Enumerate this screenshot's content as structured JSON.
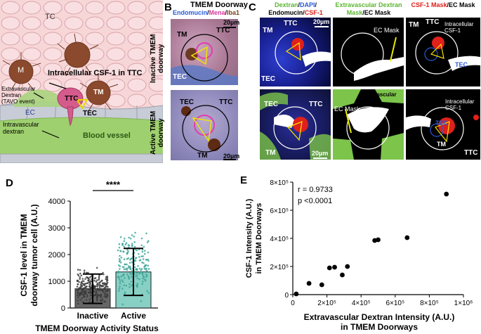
{
  "panelA": {
    "letter": "A",
    "labels": {
      "tc": "TC",
      "m": "M",
      "intracellular": "Intracellular CSF-1 in TTC",
      "extravascular_dextran": "Extravascular\nDextran\n(TAVO event)",
      "ec": "EC",
      "ttc": "TTC",
      "tm": "TM",
      "tec": "TEC",
      "intravascular": "Intravascular\ndextran",
      "blood_vessel": "Blood vessel"
    }
  },
  "panelB": {
    "letter": "B",
    "title": "TMEM Doorway",
    "stain": {
      "endomucin": "Endomucin",
      "sep1": "/",
      "mena": "Mena",
      "sep2": "/",
      "iba1": "Iba1"
    },
    "rows": [
      {
        "label": "Inactive TMEM\ndoorway",
        "tm": "TM",
        "ttc": "TTC",
        "tec": "TEC",
        "scale": "20µm"
      },
      {
        "label": "Active TMEM\ndoorway",
        "tm": "TM",
        "ttc": "TTC",
        "tec": "TEC",
        "scale": "20µm"
      }
    ]
  },
  "panelC": {
    "letter": "C",
    "col_headers": [
      {
        "parts": [
          {
            "t": "Dextran",
            "c": "#5cb531"
          },
          {
            "t": "/",
            "c": "#000000"
          },
          {
            "t": "DAPI",
            "c": "#2a5bd7"
          },
          {
            "t": "/",
            "c": "#000000"
          }
        ],
        "line2": [
          {
            "t": "Endomucin",
            "c": "#000000"
          },
          {
            "t": "/",
            "c": "#000000"
          },
          {
            "t": "CSF-1",
            "c": "#e0201b"
          }
        ]
      },
      {
        "parts": [
          {
            "t": "Extravascular Dextran",
            "c": "#5cb531"
          }
        ],
        "line2": [
          {
            "t": "Mask",
            "c": "#5cb531"
          },
          {
            "t": "/EC Mask",
            "c": "#000000"
          }
        ]
      },
      {
        "parts": [
          {
            "t": "CSF-1 Mask",
            "c": "#e0201b"
          },
          {
            "t": "/EC Mask",
            "c": "#000000"
          }
        ],
        "line2": []
      }
    ],
    "row1": {
      "c1": {
        "tm": "TM",
        "ttc": "TTC",
        "tec": "TEC",
        "scale": "20µm"
      },
      "c2": {
        "ecmask": "EC Mask"
      },
      "c3": {
        "tm": "TM",
        "ttc": "TTC",
        "intra": "Intracellular\nCSF-1",
        "tec": "TEC"
      }
    },
    "row2": {
      "c1": {
        "tec": "TEC",
        "ttc": "TTC",
        "tm": "TM",
        "scale": "20µm"
      },
      "c2": {
        "extrav": "Extravascular\ndextran",
        "ecmask": "EC Mask"
      },
      "c3": {
        "intra": "Intracellular\nCSF-1",
        "tec": "TEC",
        "tm": "TM",
        "ttc": "TTC"
      }
    }
  },
  "panelD": {
    "letter": "D",
    "ylabel": "CSF-1 level in TMEM\ndoorway tumor cell (A.U.)",
    "xlabel": "TMEM Doorway Activity Status",
    "significance": "****",
    "colors": {
      "inactive": "#666666",
      "active": "#88cfc4",
      "inactive_dots": "#3a3a3a",
      "active_dots": "#3aa497"
    }
  },
  "panelE": {
    "letter": "E",
    "ylabel": "CSF-1 Intensity (A.U.)\nin TMEM Doorways",
    "xlabel": "Extravascular Dextran Intensity (A.U.)\nin TMEM Doorways",
    "stat_r": "r = 0.9733",
    "stat_p": "p <0.0001"
  },
  "chart_data": [
    {
      "type": "bar",
      "categories": [
        "Inactive",
        "Active"
      ],
      "values": [
        720,
        1350
      ],
      "error": [
        550,
        880
      ],
      "ylim": [
        0,
        4000
      ],
      "yticks": [
        "0",
        "1000",
        "2000",
        "3000",
        "4000"
      ],
      "xlabel": "TMEM Doorway Activity Status",
      "ylabel": "CSF-1 level in TMEM doorway tumor cell (A.U.)"
    },
    {
      "type": "scatter",
      "x": [
        20000,
        95000,
        170000,
        215000,
        245000,
        290000,
        320000,
        480000,
        500000,
        670000,
        900000
      ],
      "y": [
        5000,
        80000,
        70000,
        190000,
        195000,
        140000,
        200000,
        385000,
        390000,
        405000,
        715000
      ],
      "xlim": [
        0,
        1000000
      ],
      "ylim": [
        0,
        800000
      ],
      "xticks": [
        "0",
        "2×10⁵",
        "4×10⁵",
        "6×10⁵",
        "8×10⁵",
        "1×10⁶"
      ],
      "yticks": [
        "0",
        "2×10⁵",
        "4×10⁵",
        "6×10⁵",
        "8×10⁵"
      ],
      "xlabel": "Extravascular Dextran Intensity (A.U.) in TMEM Doorways",
      "ylabel": "CSF-1 Intensity (A.U.) in TMEM Doorways"
    }
  ]
}
